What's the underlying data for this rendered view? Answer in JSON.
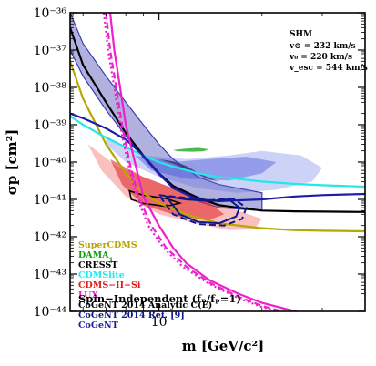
{
  "chart_data": {
    "type": "line",
    "xlabel": "m [GeV/c²]",
    "ylabel": "σp [cm²]",
    "xscale": "log",
    "yscale": "log",
    "xlim": [
      5.5,
      40
    ],
    "ylim": [
      1e-44,
      1e-36
    ],
    "x_ticks": [
      {
        "value": 10,
        "label": "10"
      }
    ],
    "y_ticks": [
      {
        "value": 1e-36,
        "label": "10⁻³⁶"
      },
      {
        "value": 1e-37,
        "label": "10⁻³⁷"
      },
      {
        "value": 1e-38,
        "label": "10⁻³⁸"
      },
      {
        "value": 1e-39,
        "label": "10⁻³⁹"
      },
      {
        "value": 1e-40,
        "label": "10⁻⁴⁰"
      },
      {
        "value": 1e-41,
        "label": "10⁻⁴¹"
      },
      {
        "value": 1e-42,
        "label": "10⁻⁴²"
      },
      {
        "value": 1e-43,
        "label": "10⁻⁴³"
      },
      {
        "value": 1e-44,
        "label": "10⁻⁴⁴"
      }
    ],
    "grid": false,
    "legend_position": "bottom-left",
    "series": [
      {
        "name": "SuperCDMS",
        "color": "#b5a800",
        "style": "solid",
        "x": [
          5.5,
          6,
          7,
          8,
          9,
          10,
          12,
          15,
          20,
          25,
          30,
          40
        ],
        "y": [
          5e-38,
          5e-39,
          3e-40,
          5e-41,
          1.5e-41,
          8e-42,
          4e-42,
          2.3e-42,
          1.7e-42,
          1.5e-42,
          1.45e-42,
          1.4e-42
        ]
      },
      {
        "name": "CRESST",
        "color": "#000000",
        "style": "solid",
        "x": [
          5.5,
          6,
          7,
          8,
          9,
          10,
          11,
          13,
          15,
          20,
          25,
          30,
          40
        ],
        "y": [
          4e-37,
          4e-38,
          4e-39,
          6e-40,
          1.5e-40,
          5e-41,
          2.3e-41,
          1.1e-41,
          7e-42,
          5e-42,
          4.8e-42,
          4.7e-42,
          4.6e-42
        ]
      },
      {
        "name": "CDMSlite",
        "color": "#22e8e8",
        "style": "solid",
        "x": [
          5.5,
          6,
          7,
          8,
          9,
          10,
          11,
          13,
          15,
          20,
          25,
          30,
          40
        ],
        "y": [
          1.7e-39,
          1e-39,
          4.5e-40,
          2.5e-40,
          1.5e-40,
          1e-40,
          7.5e-41,
          5e-41,
          4e-41,
          3e-41,
          2.6e-41,
          2.4e-41,
          2.2e-41
        ]
      },
      {
        "name": "CoGeNT",
        "color": "#1c1ca8",
        "style": "solid",
        "x": [
          5.5,
          6,
          7,
          8,
          9,
          10,
          11,
          13,
          15,
          20,
          25,
          30,
          40
        ],
        "y": [
          2e-39,
          1.5e-39,
          8e-40,
          4e-40,
          1.5e-40,
          5e-41,
          2e-41,
          1e-41,
          9e-42,
          1e-41,
          1.2e-41,
          1.3e-41,
          1.4e-41
        ]
      },
      {
        "name": "LUX",
        "color": "#ee1fcc",
        "style": "solid",
        "x": [
          7.2,
          7.4,
          7.7,
          8,
          8.5,
          9,
          10,
          11,
          12,
          14,
          17,
          20,
          25,
          30,
          40
        ],
        "y": [
          1e-36,
          1e-37,
          1e-38,
          1e-39,
          1e-40,
          1.2e-41,
          2e-42,
          5e-43,
          2e-43,
          7e-44,
          3e-44,
          1.7e-44,
          1e-44,
          7e-45,
          5e-45
        ]
      },
      {
        "name": "LUX (dashed)",
        "color": "#ee1fcc",
        "style": "dashed",
        "x": [
          7.0,
          7.2,
          7.5,
          7.8,
          8.2,
          8.7,
          9.5,
          10.5,
          12,
          14,
          17,
          20,
          25,
          30,
          40
        ],
        "y": [
          1e-36,
          1e-37,
          1e-38,
          1e-39,
          1e-40,
          1.2e-41,
          2e-42,
          5e-43,
          1.6e-43,
          6e-44,
          2.5e-44,
          1.4e-44,
          8e-45,
          6e-45,
          4e-45
        ]
      },
      {
        "name": "LUX (dotted)",
        "color": "#ee1fcc",
        "style": "dotted",
        "x": [
          6.9,
          7.1,
          7.4,
          7.7,
          8.1,
          8.6,
          9.3,
          10.3,
          11.8,
          14,
          17,
          20,
          25,
          30,
          40
        ],
        "y": [
          1e-36,
          1e-37,
          1e-38,
          1e-39,
          1e-40,
          1.2e-41,
          2e-42,
          5e-43,
          1.5e-43,
          5.5e-44,
          2.3e-44,
          1.3e-44,
          7.5e-45,
          5.5e-45,
          4e-45
        ]
      }
    ],
    "bands": [
      {
        "name": "CoGeNT band",
        "color": "#3b3bb0",
        "opacity": 0.4,
        "upper_x": [
          5.5,
          6,
          7,
          8,
          9,
          10,
          11,
          13,
          15,
          20
        ],
        "upper_y": [
          1e-36,
          1.5e-37,
          2e-38,
          4e-39,
          1e-39,
          3e-40,
          1.2e-40,
          4e-41,
          2.5e-41,
          1.5e-41
        ],
        "lower_x": [
          5.5,
          6,
          7,
          8,
          9,
          10,
          11,
          13,
          15,
          20
        ],
        "lower_y": [
          1e-37,
          2e-38,
          2.5e-39,
          5e-40,
          1.3e-40,
          4.5e-41,
          2e-41,
          9e-42,
          6e-42,
          5e-42
        ]
      }
    ],
    "regions": [
      {
        "name": "CDMS-II-Si 1σ",
        "color": "#f04848",
        "opacity": 0.35,
        "x": [
          6.2,
          7.5,
          9,
          11,
          14,
          17,
          20,
          19,
          16,
          13,
          10,
          8,
          6.8
        ],
        "y": [
          3e-40,
          8e-41,
          4e-41,
          2e-41,
          1e-41,
          5e-42,
          3e-42,
          1.6e-42,
          1.5e-42,
          2.2e-42,
          4e-42,
          1.2e-41,
          6e-41
        ]
      },
      {
        "name": "CDMS-II-Si 2σ",
        "color": "#e02020",
        "opacity": 0.55,
        "x": [
          7.2,
          9,
          11,
          14,
          15.5,
          14,
          11.5,
          9,
          7.8
        ],
        "y": [
          1.2e-40,
          4e-41,
          2e-41,
          8e-42,
          4e-42,
          2.8e-42,
          3.5e-42,
          7e-42,
          2.5e-41
        ]
      },
      {
        "name": "CoGeNT 2014 region outer",
        "color": "#5a6ae6",
        "opacity": 0.3,
        "x": [
          7,
          9,
          12,
          16,
          20,
          26,
          30,
          28,
          22,
          17,
          13,
          10,
          8,
          7
        ],
        "y": [
          5e-40,
          1.5e-40,
          1.2e-40,
          1.5e-40,
          2e-40,
          1.5e-40,
          7e-41,
          3e-41,
          1.8e-41,
          1.5e-41,
          2e-41,
          4e-41,
          1e-40,
          3e-40
        ]
      },
      {
        "name": "CoGeNT 2014 region inner",
        "color": "#3b4ed8",
        "opacity": 0.4,
        "x": [
          8.5,
          11,
          14,
          18,
          22,
          20,
          16,
          12,
          9.5
        ],
        "y": [
          1.5e-40,
          1e-40,
          1.2e-40,
          1.4e-40,
          1e-40,
          5e-41,
          3.2e-41,
          3.6e-41,
          6e-41
        ]
      },
      {
        "name": "DAMA region",
        "color": "#12a012",
        "opacity": 0.75,
        "x": [
          11,
          12,
          13,
          14,
          13.5,
          12.5,
          11.3
        ],
        "y": [
          2.1e-40,
          2.3e-40,
          2.4e-40,
          2.2e-40,
          1.95e-40,
          1.9e-40,
          1.95e-40
        ]
      },
      {
        "name": "Dark region",
        "color": "#2e2e60",
        "opacity": 0.7,
        "x": [
          10,
          11,
          12,
          13,
          14,
          15,
          14,
          12.5,
          11
        ],
        "y": [
          1.2e-40,
          1.05e-40,
          8e-41,
          5.2e-41,
          3.8e-41,
          3e-41,
          3.4e-41,
          5.6e-41,
          9e-41
        ]
      },
      {
        "name": "Black small contour",
        "color": "#000000",
        "opacity": 0,
        "x": [
          8.2,
          9,
          10.5,
          11.5,
          10.5,
          9,
          8.3
        ],
        "y": [
          1.7e-41,
          1.3e-41,
          1.05e-41,
          8e-42,
          6.5e-42,
          7.8e-42,
          1e-41
        ]
      }
    ],
    "contours": [
      {
        "name": "CoGeNT 2014 Ref. [9] solid",
        "color": "#0a1a8c",
        "style": "solid",
        "x": [
          10.5,
          12,
          14,
          16,
          17.2,
          16.8,
          15,
          13,
          11.5,
          10.5
        ],
        "y": [
          1.2e-41,
          1e-41,
          9e-42,
          1e-41,
          6e-42,
          3.5e-42,
          2.3e-42,
          2.5e-42,
          4e-42,
          1.2e-41
        ]
      },
      {
        "name": "CoGeNT 2014 Ref. [9] dashed",
        "color": "#0a1a8c",
        "style": "dashed",
        "x": [
          10,
          12,
          14,
          16.5,
          18,
          17.5,
          15.5,
          13,
          11,
          10
        ],
        "y": [
          1.3e-41,
          1.1e-41,
          9.5e-42,
          1.05e-41,
          6e-42,
          3e-42,
          2e-42,
          2.2e-42,
          4e-42,
          1.3e-41
        ]
      }
    ],
    "legend": [
      {
        "label": "SuperCDMS",
        "color": "#b5a800"
      },
      {
        "label": "DAMA",
        "subscript": "1",
        "color": "#12a012"
      },
      {
        "label": "CRESST",
        "color": "#000000"
      },
      {
        "label": "CDMSlite",
        "color": "#22e8e8"
      },
      {
        "label": "CDMS−II−Si",
        "color": "#e81818"
      },
      {
        "label": "LUX",
        "color": "#ee1fcc"
      },
      {
        "label": "CoGeNT 2014 Analytic C(E)",
        "color": "#000000"
      },
      {
        "label": "CoGeNT 2014 Ref. [9]",
        "color": "#0a1a8c"
      },
      {
        "label": "CoGeNT",
        "color": "#1c1ca8"
      }
    ],
    "annotations": {
      "shm_title": "SHM",
      "shm_lines": [
        "v⊙ = 232 km/s",
        "v₀ = 220 km/s",
        "v_esc = 544 km/s"
      ],
      "bottom_label": "Spin−Independent (fₙ/fₚ=1)"
    }
  }
}
